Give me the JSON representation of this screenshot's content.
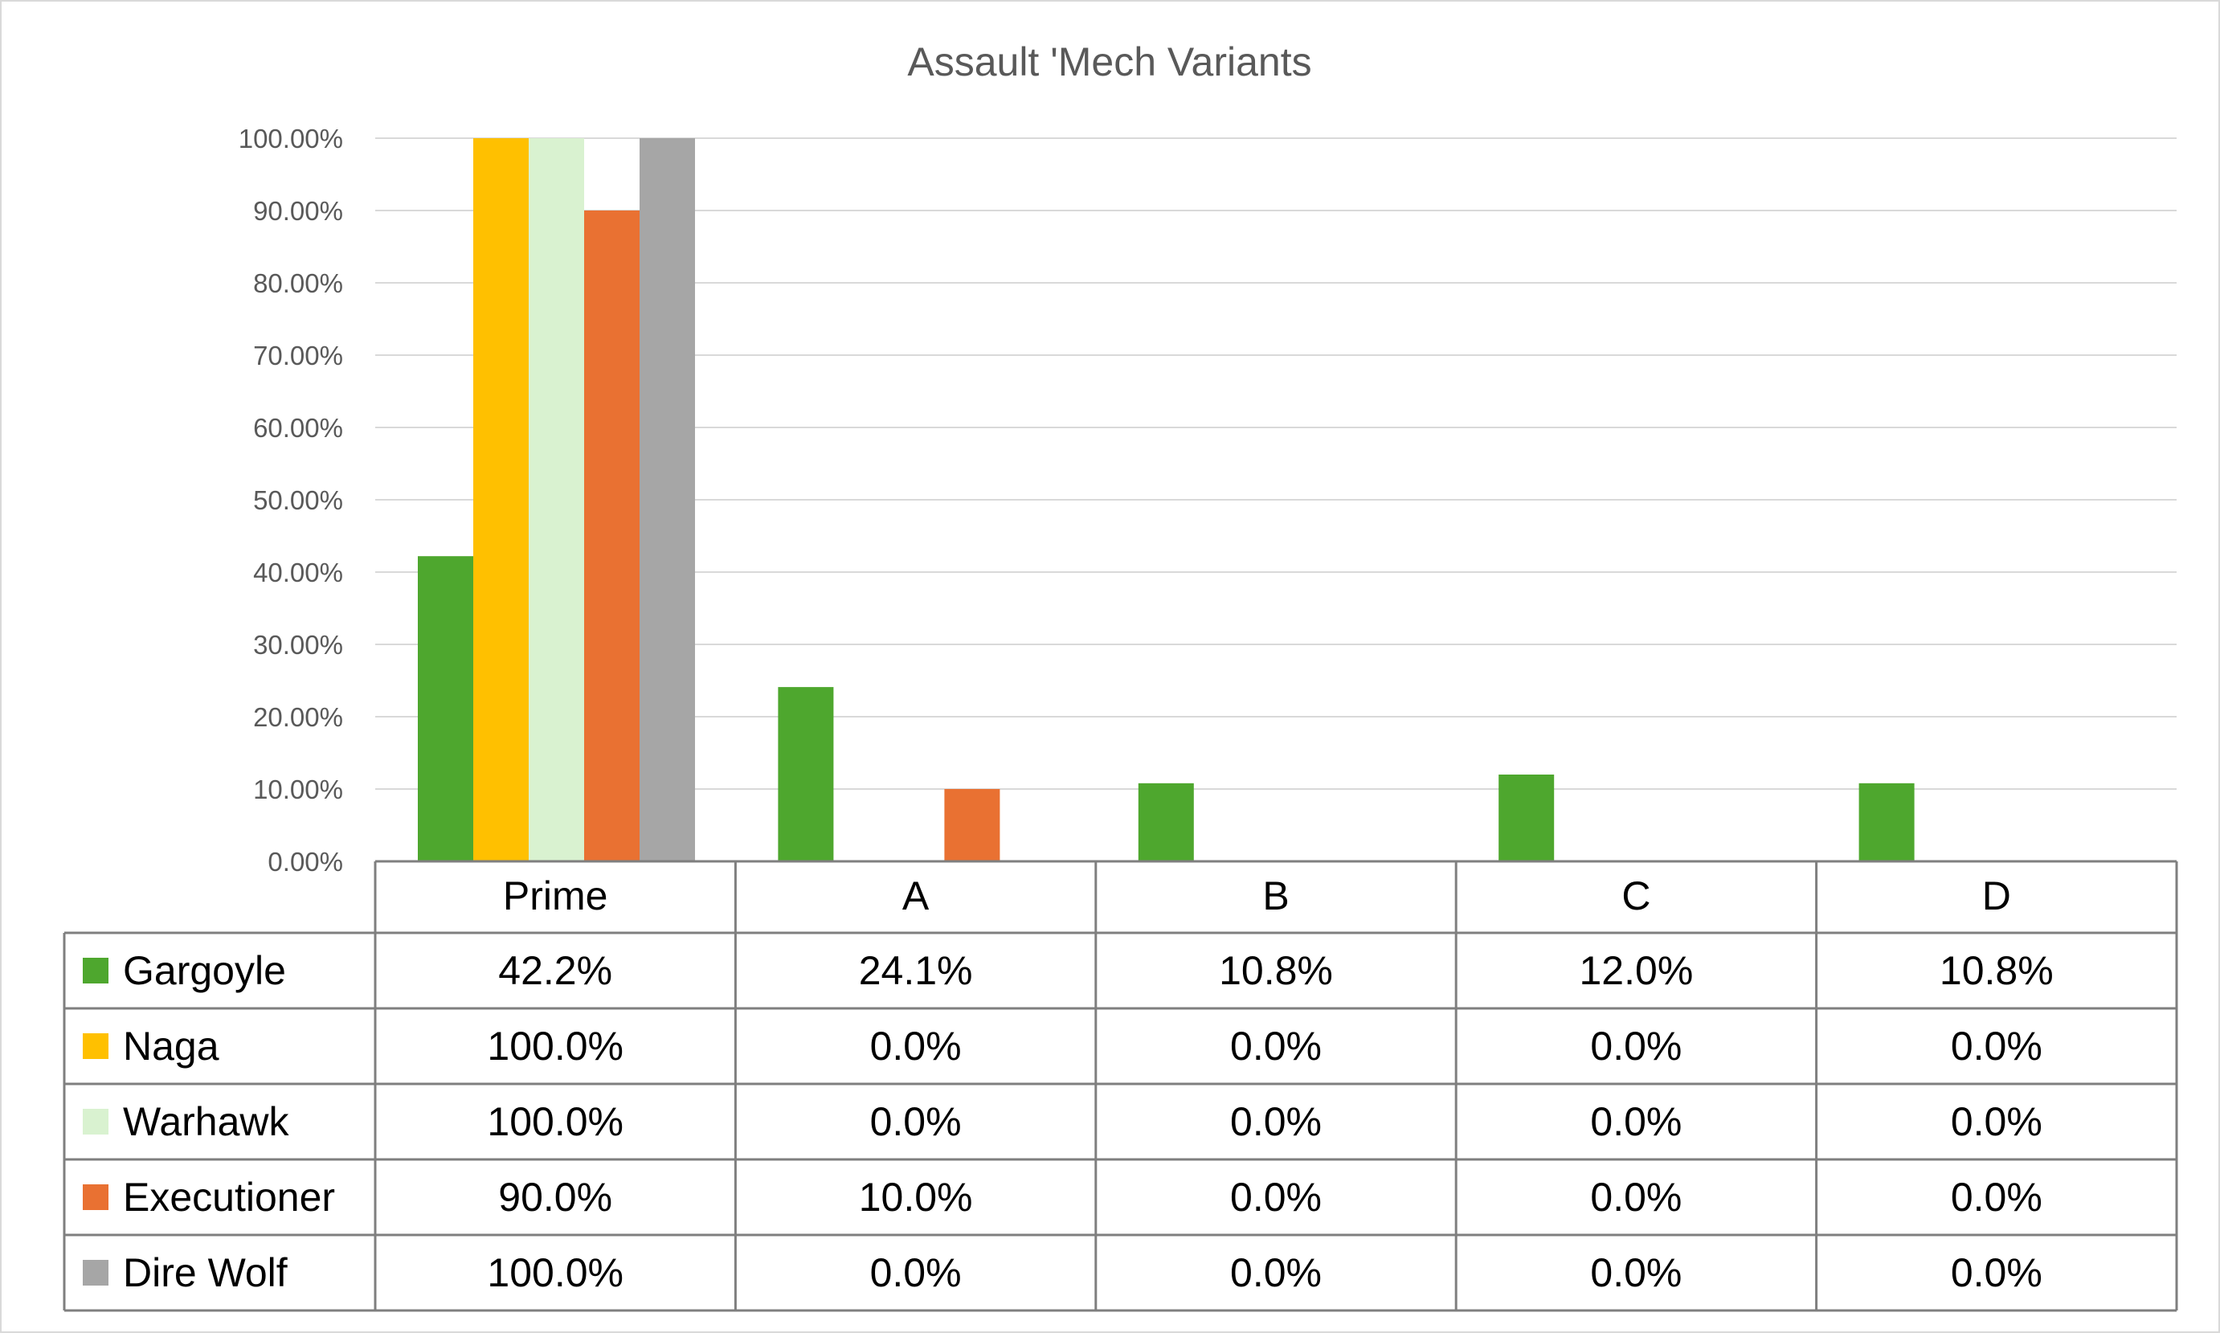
{
  "chart_data": {
    "type": "bar",
    "title": "Assault 'Mech Variants",
    "xlabel": "",
    "ylabel": "",
    "categories": [
      "Prime",
      "A",
      "B",
      "C",
      "D"
    ],
    "ylim": [
      0,
      100
    ],
    "yticks": [
      "0.00%",
      "10.00%",
      "20.00%",
      "30.00%",
      "40.00%",
      "50.00%",
      "60.00%",
      "70.00%",
      "80.00%",
      "90.00%",
      "100.00%"
    ],
    "grid": true,
    "legend": "data-table",
    "series": [
      {
        "name": "Gargoyle",
        "color": "#4ea72e",
        "values": [
          42.2,
          24.1,
          10.8,
          12.0,
          10.8
        ],
        "labels": [
          "42.2%",
          "24.1%",
          "10.8%",
          "12.0%",
          "10.8%"
        ]
      },
      {
        "name": "Naga",
        "color": "#ffc000",
        "values": [
          100.0,
          0.0,
          0.0,
          0.0,
          0.0
        ],
        "labels": [
          "100.0%",
          "0.0%",
          "0.0%",
          "0.0%",
          "0.0%"
        ]
      },
      {
        "name": "Warhawk",
        "color": "#d9f2d0",
        "values": [
          100.0,
          0.0,
          0.0,
          0.0,
          0.0
        ],
        "labels": [
          "100.0%",
          "0.0%",
          "0.0%",
          "0.0%",
          "0.0%"
        ]
      },
      {
        "name": "Executioner",
        "color": "#e97132",
        "values": [
          90.0,
          10.0,
          0.0,
          0.0,
          0.0
        ],
        "labels": [
          "90.0%",
          "10.0%",
          "0.0%",
          "0.0%",
          "0.0%"
        ]
      },
      {
        "name": "Dire Wolf",
        "color": "#a6a6a6",
        "values": [
          100.0,
          0.0,
          0.0,
          0.0,
          0.0
        ],
        "labels": [
          "100.0%",
          "0.0%",
          "0.0%",
          "0.0%",
          "0.0%"
        ]
      }
    ]
  }
}
